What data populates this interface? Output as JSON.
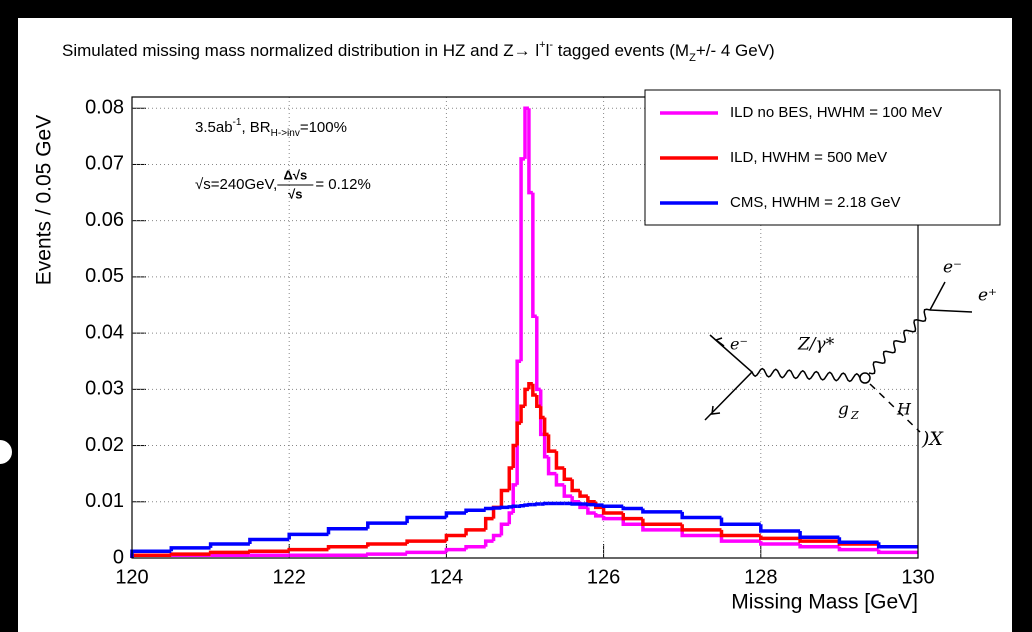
{
  "chart_data": {
    "type": "histogram",
    "title": [
      "Simulated missing mass normalized distribution in HZ and Z→ l",
      "+",
      "l",
      "-",
      " tagged events (M",
      "Z",
      "+/- 4 GeV)"
    ],
    "x_label": "Missing Mass [GeV]",
    "y_label": "Events / 0.05 GeV",
    "annotation_1": [
      "3.5ab",
      "-1",
      ", BR",
      "H->inv",
      "=100%"
    ],
    "annotation_2": [
      "√s=240GeV, ",
      "Δ√s",
      "√s",
      " = 0.12%"
    ],
    "bins": [
      120,
      120.5,
      121,
      121.5,
      122,
      122.5,
      123,
      123.5,
      124,
      124.25,
      124.5,
      124.6,
      124.7,
      124.8,
      124.85,
      124.9,
      124.95,
      125,
      125.05,
      125.1,
      125.15,
      125.2,
      125.25,
      125.3,
      125.4,
      125.5,
      125.6,
      125.7,
      125.8,
      125.9,
      126,
      126.25,
      126.5,
      127,
      127.5,
      128,
      128.5,
      129,
      129.5,
      130
    ],
    "series": [
      {
        "name": "ILD no BES, HWHM = 100 MeV",
        "color": "#ff00ff",
        "values": [
          0.0005,
          0.0005,
          0.0005,
          0.0005,
          0.0005,
          0.0005,
          0.0007,
          0.001,
          0.0015,
          0.002,
          0.003,
          0.004,
          0.006,
          0.008,
          0.013,
          0.035,
          0.071,
          0.08,
          0.065,
          0.043,
          0.03,
          0.022,
          0.018,
          0.015,
          0.013,
          0.011,
          0.01,
          0.009,
          0.008,
          0.0075,
          0.007,
          0.006,
          0.005,
          0.004,
          0.003,
          0.0025,
          0.002,
          0.0015,
          0.001
        ]
      },
      {
        "name": "ILD, HWHM = 500 MeV",
        "color": "#ff0000",
        "values": [
          0.0005,
          0.0007,
          0.001,
          0.0012,
          0.0015,
          0.002,
          0.0025,
          0.003,
          0.004,
          0.005,
          0.007,
          0.009,
          0.012,
          0.016,
          0.02,
          0.024,
          0.027,
          0.03,
          0.031,
          0.029,
          0.027,
          0.025,
          0.022,
          0.019,
          0.016,
          0.014,
          0.012,
          0.011,
          0.01,
          0.009,
          0.008,
          0.007,
          0.006,
          0.005,
          0.004,
          0.0035,
          0.003,
          0.0025,
          0.002
        ]
      },
      {
        "name": "CMS, HWHM = 2.18 GeV",
        "color": "#0000ff",
        "values": [
          0.0012,
          0.0018,
          0.0025,
          0.0033,
          0.0042,
          0.0052,
          0.0062,
          0.0072,
          0.008,
          0.0085,
          0.0088,
          0.0089,
          0.009,
          0.0091,
          0.0092,
          0.0092,
          0.0093,
          0.0094,
          0.0095,
          0.0095,
          0.0096,
          0.0096,
          0.0097,
          0.0097,
          0.0097,
          0.0097,
          0.0096,
          0.0096,
          0.0095,
          0.0094,
          0.0092,
          0.0088,
          0.0082,
          0.0072,
          0.006,
          0.0048,
          0.0037,
          0.0028,
          0.002
        ]
      }
    ],
    "xlim": [
      120,
      130
    ],
    "ylim": [
      0,
      0.082
    ],
    "xticks": [
      120,
      122,
      124,
      126,
      128,
      130
    ],
    "yticks": [
      0,
      0.01,
      0.02,
      0.03,
      0.04,
      0.05,
      0.06,
      0.07,
      0.08
    ],
    "grid": true,
    "legend": "top-right",
    "diagram_labels": [
      "e⁻",
      "Z/γ*",
      "H",
      "g",
      "Z",
      "e⁻",
      "e⁺",
      ")X"
    ]
  }
}
